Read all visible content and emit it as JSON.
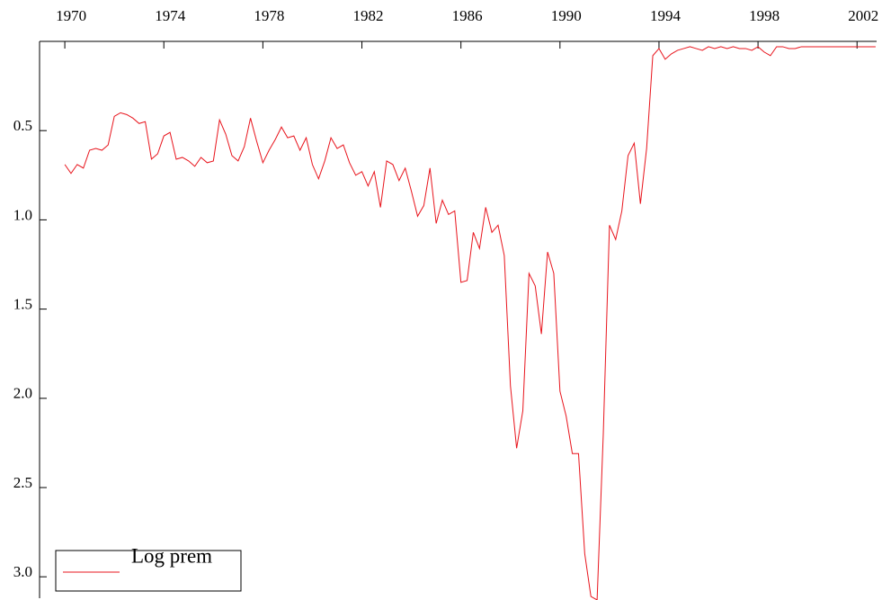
{
  "chart_data": {
    "type": "line",
    "y_inverted": true,
    "xaxis_position": "top",
    "legend": "bottom-left",
    "x": [
      1970,
      1970.25,
      1970.5,
      1970.75,
      1971,
      1971.25,
      1971.5,
      1971.75,
      1972,
      1972.25,
      1972.5,
      1972.75,
      1973,
      1973.25,
      1973.5,
      1973.75,
      1974,
      1974.25,
      1974.5,
      1974.75,
      1975,
      1975.25,
      1975.5,
      1975.75,
      1976,
      1976.25,
      1976.5,
      1976.75,
      1977,
      1977.25,
      1977.5,
      1977.75,
      1978,
      1978.25,
      1978.5,
      1978.75,
      1979,
      1979.25,
      1979.5,
      1979.75,
      1980,
      1980.25,
      1980.5,
      1980.75,
      1981,
      1981.25,
      1981.5,
      1981.75,
      1982,
      1982.25,
      1982.5,
      1982.75,
      1983,
      1983.25,
      1983.5,
      1983.75,
      1984,
      1984.25,
      1984.5,
      1984.75,
      1985,
      1985.25,
      1985.5,
      1985.75,
      1986,
      1986.25,
      1986.5,
      1986.75,
      1987,
      1987.25,
      1987.5,
      1987.75,
      1988,
      1988.25,
      1988.5,
      1988.75,
      1989,
      1989.25,
      1989.5,
      1989.75,
      1990,
      1990.25,
      1990.5,
      1990.75,
      1991,
      1991.25,
      1991.5,
      1991.75,
      1992,
      1992.25,
      1992.5,
      1992.75,
      1993,
      1993.25,
      1993.5,
      1993.75,
      1994,
      1994.25,
      1994.5,
      1994.75,
      1995,
      1995.25,
      1995.5,
      1995.75,
      1996,
      1996.25,
      1996.5,
      1996.75,
      1997,
      1997.25,
      1997.5,
      1997.75,
      1998,
      1998.25,
      1998.5,
      1998.75,
      1999,
      1999.25,
      1999.5,
      1999.75,
      2000,
      2000.25,
      2000.5,
      2000.75,
      2001,
      2001.25,
      2001.5,
      2001.75,
      2002,
      2002.25,
      2002.5,
      2002.75
    ],
    "series": [
      {
        "name": "Log prem",
        "color": "#e8141c",
        "values": [
          0.69,
          0.74,
          0.69,
          0.71,
          0.61,
          0.6,
          0.61,
          0.58,
          0.42,
          0.4,
          0.41,
          0.43,
          0.46,
          0.45,
          0.66,
          0.63,
          0.53,
          0.51,
          0.66,
          0.65,
          0.67,
          0.7,
          0.65,
          0.68,
          0.67,
          0.44,
          0.52,
          0.64,
          0.67,
          0.59,
          0.43,
          0.56,
          0.68,
          0.61,
          0.55,
          0.48,
          0.54,
          0.53,
          0.61,
          0.54,
          0.69,
          0.77,
          0.67,
          0.54,
          0.6,
          0.58,
          0.68,
          0.75,
          0.73,
          0.81,
          0.73,
          0.93,
          0.67,
          0.69,
          0.78,
          0.71,
          0.84,
          0.98,
          0.92,
          0.71,
          1.02,
          0.89,
          0.97,
          0.95,
          1.35,
          1.34,
          1.07,
          1.16,
          0.93,
          1.07,
          1.03,
          1.2,
          1.93,
          2.28,
          2.07,
          1.3,
          1.37,
          1.64,
          1.18,
          1.3,
          1.96,
          2.1,
          2.31,
          2.31,
          2.87,
          3.11,
          3.13,
          2.2,
          1.03,
          1.11,
          0.95,
          0.64,
          0.57,
          0.91,
          0.6,
          0.08,
          0.04,
          0.1,
          0.07,
          0.05,
          0.04,
          0.03,
          0.04,
          0.05,
          0.03,
          0.04,
          0.03,
          0.04,
          0.03,
          0.04,
          0.04,
          0.05,
          0.03,
          0.06,
          0.08,
          0.03,
          0.03,
          0.04,
          0.04,
          0.03,
          0.03,
          0.03,
          0.03,
          0.03,
          0.03,
          0.03,
          0.03,
          0.03,
          0.03,
          0.03,
          0.03,
          0.03
        ]
      }
    ],
    "xlim": [
      1968.98,
      2002.79
    ],
    "xticks": [
      1970,
      1974,
      1978,
      1982,
      1986,
      1990,
      1994,
      1998,
      2002
    ],
    "ylim": [
      0,
      3.12
    ],
    "yticks": [
      0.5,
      {
        "value": 1,
        "label": "1.0"
      },
      1.5,
      {
        "value": 2,
        "label": "2.0"
      },
      2.5,
      {
        "value": 3,
        "label": "3.0"
      }
    ]
  }
}
